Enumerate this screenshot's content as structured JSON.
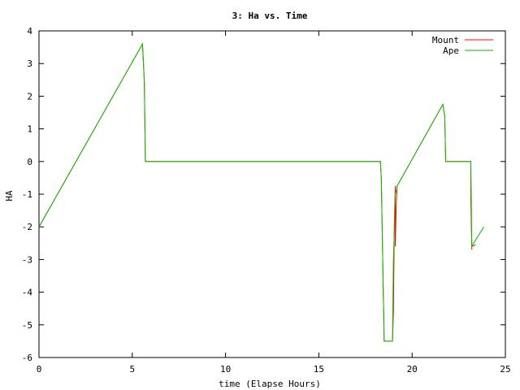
{
  "chart_data": {
    "type": "line",
    "title": "3: Ha vs. Time",
    "xlabel": "time (Elapse Hours)",
    "ylabel": "HA",
    "xlim": [
      0,
      25
    ],
    "ylim": [
      -6,
      4
    ],
    "xticks": [
      "0",
      "5",
      "10",
      "15",
      "20",
      "25"
    ],
    "yticks": [
      "-6",
      "-5",
      "-4",
      "-3",
      "-2",
      "-1",
      "0",
      "1",
      "2",
      "3",
      "4"
    ],
    "grid": false,
    "legend_position": "top-right",
    "series": [
      {
        "name": "Mount",
        "color": "#ff0000",
        "x": [
          0,
          5.55,
          5.65,
          5.7,
          18.3,
          18.35,
          18.5,
          18.95,
          19.0,
          19.05,
          19.1,
          19.1,
          19.15,
          19.2,
          21.65,
          21.75,
          21.8,
          23.15,
          23.15,
          23.2,
          23.2,
          23.4
        ],
        "y": [
          -2.0,
          3.6,
          2.4,
          0.0,
          0.0,
          -0.5,
          -5.5,
          -5.5,
          -4.6,
          -1.8,
          -0.75,
          -2.6,
          -1.3,
          -0.75,
          1.75,
          1.4,
          0.0,
          0.0,
          -1.2,
          -2.7,
          -2.6,
          -2.55
        ]
      },
      {
        "name": "Ape",
        "color": "#00c000",
        "x": [
          0,
          5.55,
          5.65,
          5.7,
          18.3,
          18.35,
          18.5,
          18.95,
          19.0,
          19.05,
          19.1,
          19.15,
          19.2,
          21.65,
          21.75,
          21.8,
          23.15,
          23.2,
          23.3,
          23.85
        ],
        "y": [
          -2.0,
          3.6,
          2.4,
          0.0,
          0.0,
          -0.5,
          -5.5,
          -5.5,
          -3.0,
          -2.0,
          -1.0,
          -0.9,
          -0.75,
          1.75,
          1.4,
          0.0,
          0.0,
          -2.6,
          -2.5,
          -2.0
        ]
      }
    ]
  }
}
